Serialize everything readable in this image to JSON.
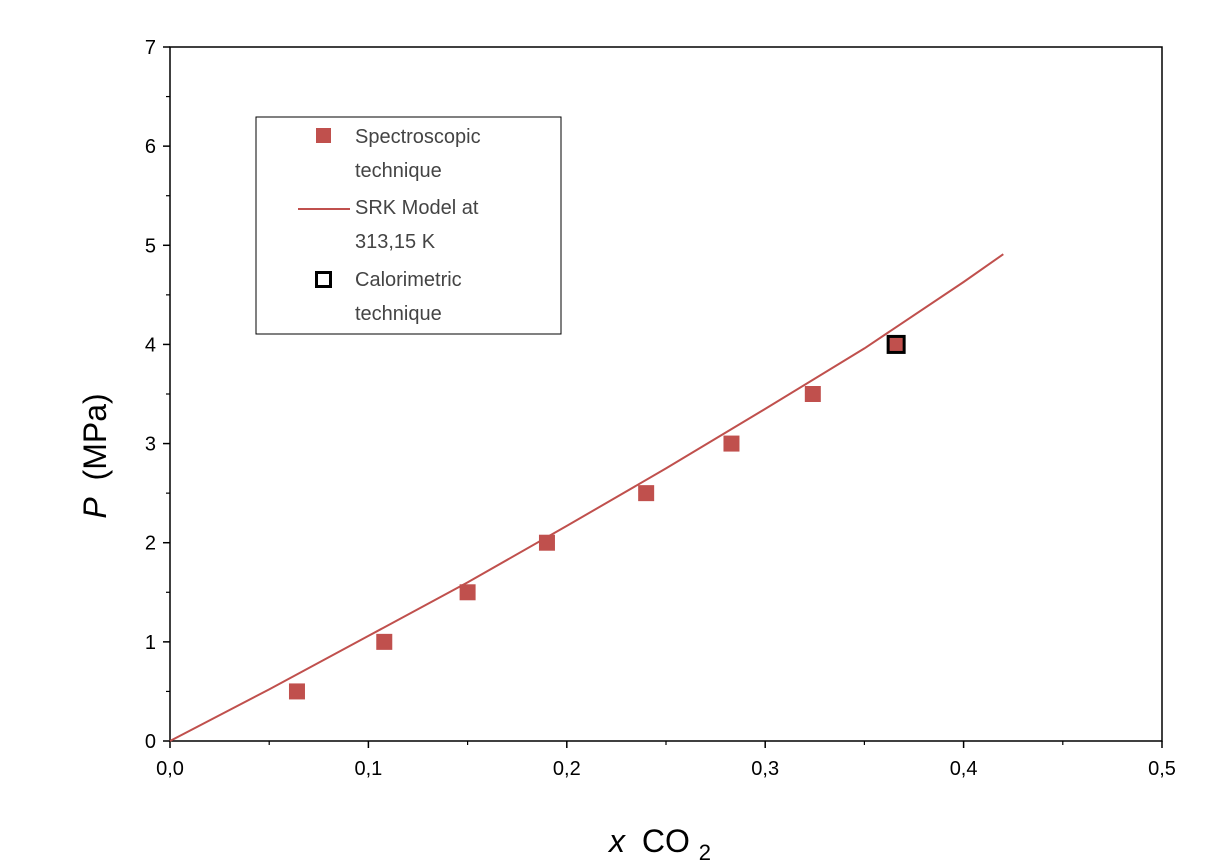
{
  "chart_data": {
    "type": "scatter",
    "x_axis": {
      "label_italic": "x",
      "label_main": "CO",
      "label_subscript": "2",
      "xlim": [
        0.0,
        0.5
      ],
      "major_ticks": [
        0.0,
        0.1,
        0.2,
        0.3,
        0.4,
        0.5
      ],
      "tick_labels": [
        "0,0",
        "0,1",
        "0,2",
        "0,3",
        "0,4",
        "0,5"
      ],
      "minor_ticks": [
        0.05,
        0.15,
        0.25,
        0.35,
        0.45
      ]
    },
    "y_axis": {
      "label_italic": "P",
      "label_main": "(MPa)",
      "ylim": [
        0,
        7
      ],
      "major_ticks": [
        0,
        1,
        2,
        3,
        4,
        5,
        6,
        7
      ],
      "tick_labels": [
        "0",
        "1",
        "2",
        "3",
        "4",
        "5",
        "6",
        "7"
      ],
      "minor_ticks": [
        0.5,
        1.5,
        2.5,
        3.5,
        4.5,
        5.5,
        6.5
      ]
    },
    "grid": false,
    "legend_position": "upper-left",
    "series": [
      {
        "name": "Spectroscopic technique",
        "legend_lines": [
          "Spectroscopic",
          "technique"
        ],
        "kind": "scatter",
        "marker": "filled-square",
        "color": "#c0504d",
        "points": [
          {
            "x": 0.064,
            "y": 0.5
          },
          {
            "x": 0.108,
            "y": 1.0
          },
          {
            "x": 0.15,
            "y": 1.5
          },
          {
            "x": 0.19,
            "y": 2.0
          },
          {
            "x": 0.24,
            "y": 2.5
          },
          {
            "x": 0.283,
            "y": 3.0
          },
          {
            "x": 0.324,
            "y": 3.5
          },
          {
            "x": 0.366,
            "y": 4.0
          }
        ]
      },
      {
        "name": "SRK Model at 313,15 K",
        "legend_lines": [
          "SRK Model at",
          "313,15 K"
        ],
        "kind": "line",
        "color": "#c0504d",
        "points": [
          {
            "x": 0.0,
            "y": 0.0
          },
          {
            "x": 0.05,
            "y": 0.52
          },
          {
            "x": 0.1,
            "y": 1.06
          },
          {
            "x": 0.15,
            "y": 1.6
          },
          {
            "x": 0.2,
            "y": 2.17
          },
          {
            "x": 0.25,
            "y": 2.75
          },
          {
            "x": 0.3,
            "y": 3.35
          },
          {
            "x": 0.35,
            "y": 3.96
          },
          {
            "x": 0.4,
            "y": 4.63
          },
          {
            "x": 0.42,
            "y": 4.91
          }
        ]
      },
      {
        "name": "Calorimetric technique",
        "legend_lines": [
          "Calorimetric",
          "technique"
        ],
        "kind": "scatter",
        "marker": "open-square",
        "color": "#000000",
        "points": [
          {
            "x": 0.366,
            "y": 4.0
          }
        ]
      }
    ]
  }
}
